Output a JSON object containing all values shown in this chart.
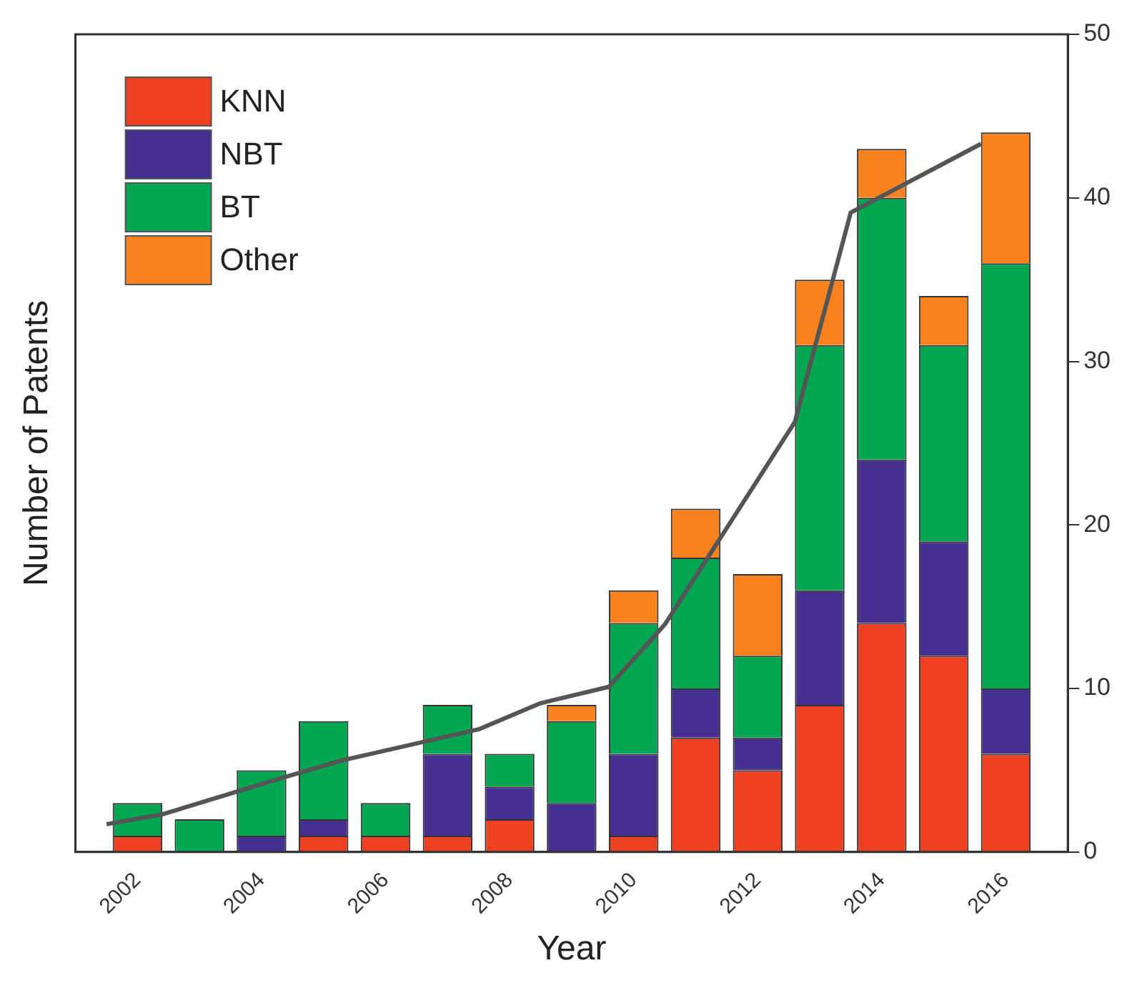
{
  "chart_data": {
    "type": "bar",
    "xlabel": "Year",
    "ylabel": "Number of Patents",
    "x": [
      2002,
      2003,
      2004,
      2005,
      2006,
      2007,
      2008,
      2009,
      2010,
      2011,
      2012,
      2013,
      2014,
      2015,
      2016
    ],
    "stacked": true,
    "xlim": [
      2001,
      2017
    ],
    "xticks": [
      2002,
      2004,
      2006,
      2008,
      2010,
      2012,
      2014,
      2016
    ],
    "ylim": [
      0,
      50
    ],
    "yticks": [
      0,
      10,
      20,
      30,
      40,
      50
    ],
    "legend": "top left",
    "grid": false,
    "series": [
      {
        "name": "KNN",
        "color": "#ee4123",
        "values": [
          1,
          0,
          0,
          1,
          1,
          1,
          2,
          0,
          1,
          7,
          5,
          9,
          14,
          12,
          6
        ]
      },
      {
        "name": "NBT",
        "color": "#44318f",
        "values": [
          0,
          0,
          1,
          1,
          0,
          5,
          2,
          3,
          5,
          3,
          2,
          7,
          10,
          7,
          4
        ]
      },
      {
        "name": "BT",
        "color": "#00a651",
        "values": [
          2,
          2,
          4,
          6,
          2,
          3,
          2,
          5,
          8,
          8,
          5,
          15,
          16,
          12,
          26
        ]
      },
      {
        "name": "Other",
        "color": "#f7821f",
        "values": [
          0,
          0,
          0,
          0,
          0,
          0,
          0,
          1,
          2,
          3,
          5,
          4,
          3,
          3,
          8
        ]
      },
      {
        "type": "line",
        "color": "#555555",
        "x": [
          2001.5,
          2002.4,
          2004.3,
          2005.3,
          2007.5,
          2008.5,
          2009.6,
          2010.5,
          2012.6,
          2013.5,
          2015.6
        ],
        "values": [
          1.7,
          2.3,
          4.5,
          5.6,
          7.5,
          9.1,
          10.1,
          13.9,
          26.3,
          39.1,
          43.3
        ],
        "marker": "none"
      }
    ]
  }
}
